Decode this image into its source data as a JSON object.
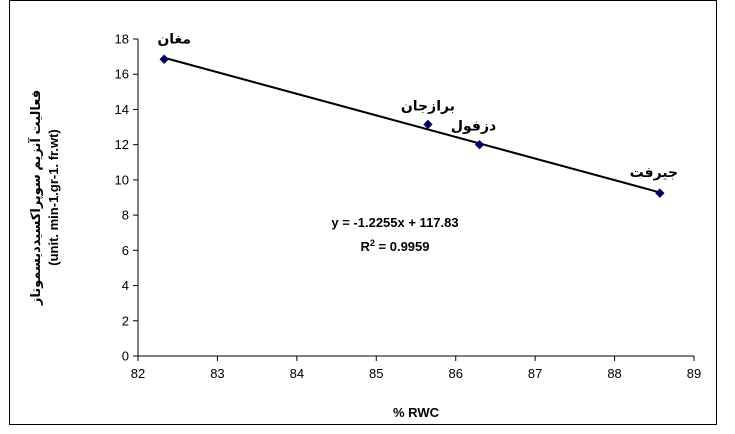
{
  "chart_data": {
    "type": "scatter",
    "title": "",
    "xlabel": "% RWC",
    "ylabel_line1": "فعالیت آنزیم سوپراکسیددیسموتاز",
    "ylabel_line2": "(unit. min-1.gr-1. fr.wt)",
    "xlim": [
      82,
      89
    ],
    "ylim": [
      0,
      18
    ],
    "xticks": [
      82,
      83,
      84,
      85,
      86,
      87,
      88,
      89
    ],
    "yticks": [
      0,
      2,
      4,
      6,
      8,
      10,
      12,
      14,
      16,
      18
    ],
    "grid": false,
    "legend": "none",
    "points": [
      {
        "label": "مغان",
        "x": 82.33,
        "y": 16.85
      },
      {
        "label": "برازجان",
        "x": 85.65,
        "y": 13.15
      },
      {
        "label": "دزفول",
        "x": 86.3,
        "y": 12.0
      },
      {
        "label": "جیرفت",
        "x": 88.57,
        "y": 9.25
      }
    ],
    "trendline": {
      "type": "linear",
      "slope": -1.2255,
      "intercept": 117.83,
      "x_range": [
        82.33,
        88.57
      ],
      "equation": "y = -1.2255x + 117.83",
      "r2_prefix": "R",
      "r2_sup": "2",
      "r2_suffix": " = 0.9959"
    },
    "colors": {
      "marker": "#000066",
      "line": "#000000",
      "axis": "#000000"
    }
  }
}
